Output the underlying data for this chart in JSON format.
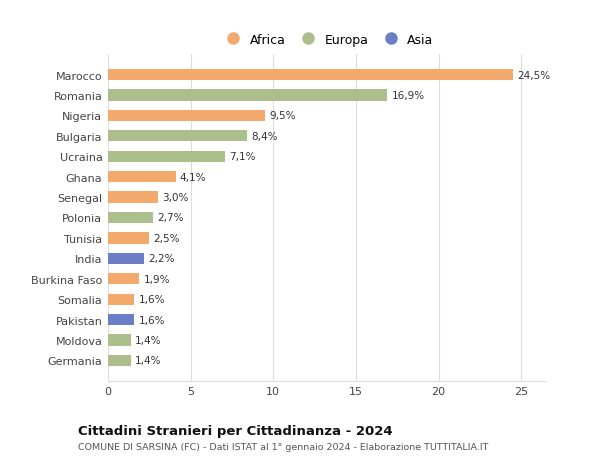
{
  "countries": [
    "Germania",
    "Moldova",
    "Pakistan",
    "Somalia",
    "Burkina Faso",
    "India",
    "Tunisia",
    "Polonia",
    "Senegal",
    "Ghana",
    "Ucraina",
    "Bulgaria",
    "Nigeria",
    "Romania",
    "Marocco"
  ],
  "values": [
    1.4,
    1.4,
    1.6,
    1.6,
    1.9,
    2.2,
    2.5,
    2.7,
    3.0,
    4.1,
    7.1,
    8.4,
    9.5,
    16.9,
    24.5
  ],
  "labels": [
    "1,4%",
    "1,4%",
    "1,6%",
    "1,6%",
    "1,9%",
    "2,2%",
    "2,5%",
    "2,7%",
    "3,0%",
    "4,1%",
    "7,1%",
    "8,4%",
    "9,5%",
    "16,9%",
    "24,5%"
  ],
  "continents": [
    "Europa",
    "Europa",
    "Asia",
    "Africa",
    "Africa",
    "Asia",
    "Africa",
    "Europa",
    "Africa",
    "Africa",
    "Europa",
    "Europa",
    "Africa",
    "Europa",
    "Africa"
  ],
  "africa_color": "#F2A96B",
  "europa_color": "#ABBE8B",
  "asia_color": "#6B7EC5",
  "title": "Cittadini Stranieri per Cittadinanza - 2024",
  "subtitle": "COMUNE DI SARSINA (FC) - Dati ISTAT al 1° gennaio 2024 - Elaborazione TUTTITALIA.IT",
  "xlim": [
    0,
    26.5
  ],
  "xticks": [
    0,
    5,
    10,
    15,
    20,
    25
  ],
  "background_color": "#ffffff",
  "grid_color": "#dddddd",
  "bar_height": 0.55
}
